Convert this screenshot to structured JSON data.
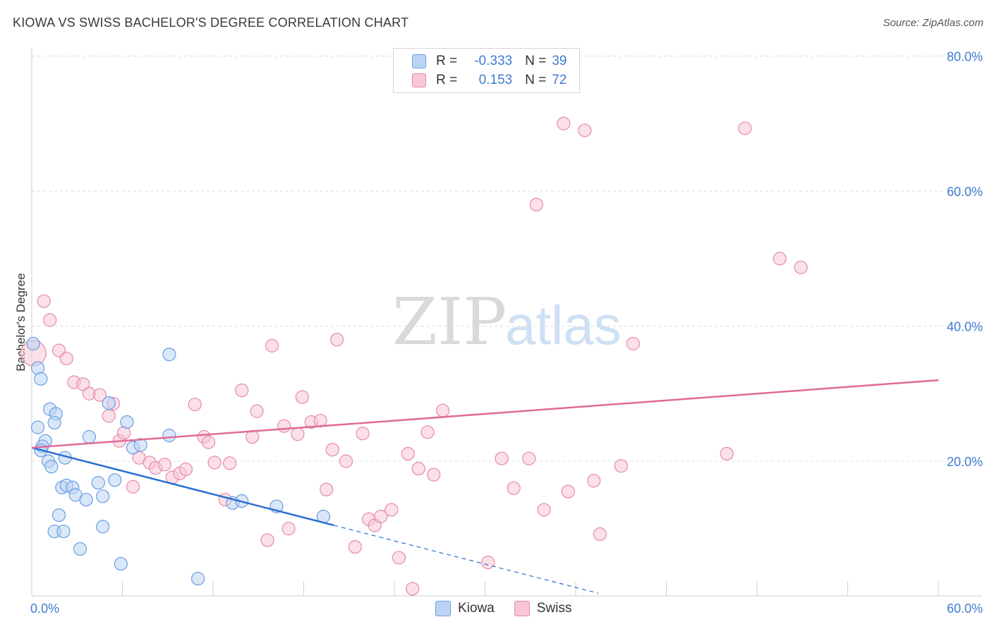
{
  "header": {
    "title": "KIOWA VS SWISS BACHELOR'S DEGREE CORRELATION CHART",
    "source": "Source: ZipAtlas.com"
  },
  "legend": {
    "rows": [
      {
        "r_label": "R =",
        "r_value": "-0.333",
        "n_label": "N =",
        "n_value": "39"
      },
      {
        "r_label": "R =",
        "r_value": "0.153",
        "n_label": "N =",
        "n_value": "72"
      }
    ]
  },
  "watermark": {
    "part1": "ZIP",
    "part2": "atlas"
  },
  "colors": {
    "kiowa_fill": "#bcd4f4",
    "kiowa_stroke": "#6a9ee0",
    "kiowa_line": "#2a6fd1",
    "swiss_fill": "#f8c6d6",
    "swiss_stroke": "#e58aa8",
    "swiss_line": "#e06b96",
    "tick_text": "#3f7bd0",
    "grid": "#dcdcdc"
  },
  "chart_data": {
    "type": "scatter",
    "title": "KIOWA VS SWISS BACHELOR'S DEGREE CORRELATION CHART",
    "xlabel": "",
    "ylabel": "Bachelor's Degree",
    "xlim": [
      0,
      60
    ],
    "ylim": [
      0,
      85
    ],
    "x_tick_labels": [
      "0.0%",
      "60.0%"
    ],
    "y_ticks": [
      20,
      40,
      60,
      80
    ],
    "y_tick_labels": [
      "20.0%",
      "40.0%",
      "60.0%",
      "80.0%"
    ],
    "grid": true,
    "legend_position": "top-center",
    "series": [
      {
        "name": "Kiowa",
        "r": -0.333,
        "n": 39,
        "trend": {
          "x0": 0,
          "y0": 22.0,
          "x1": 20,
          "y1": 10.5,
          "dashed_to_x": 37.5
        },
        "points": [
          [
            0.1,
            37.4
          ],
          [
            0.4,
            33.8
          ],
          [
            0.6,
            32.2
          ],
          [
            0.4,
            25.0
          ],
          [
            1.2,
            27.7
          ],
          [
            1.6,
            27.0
          ],
          [
            1.5,
            25.7
          ],
          [
            0.9,
            23.0
          ],
          [
            0.7,
            22.2
          ],
          [
            0.6,
            21.6
          ],
          [
            2.2,
            20.5
          ],
          [
            1.1,
            20.0
          ],
          [
            1.3,
            19.2
          ],
          [
            2.0,
            16.1
          ],
          [
            2.3,
            16.4
          ],
          [
            2.7,
            16.1
          ],
          [
            2.9,
            15.0
          ],
          [
            3.6,
            14.3
          ],
          [
            1.8,
            12.0
          ],
          [
            1.5,
            9.6
          ],
          [
            2.1,
            9.6
          ],
          [
            3.2,
            7.0
          ],
          [
            3.8,
            23.6
          ],
          [
            4.4,
            16.8
          ],
          [
            4.7,
            14.8
          ],
          [
            4.7,
            10.3
          ],
          [
            5.5,
            17.2
          ],
          [
            5.1,
            28.6
          ],
          [
            6.3,
            25.8
          ],
          [
            6.7,
            22.0
          ],
          [
            7.2,
            22.4
          ],
          [
            9.1,
            23.8
          ],
          [
            9.1,
            35.8
          ],
          [
            5.9,
            4.8
          ],
          [
            11.0,
            2.6
          ],
          [
            13.3,
            13.8
          ],
          [
            13.9,
            14.1
          ],
          [
            16.2,
            13.3
          ],
          [
            19.3,
            11.8
          ]
        ]
      },
      {
        "name": "Swiss",
        "r": 0.153,
        "n": 72,
        "trend": {
          "x0": 0,
          "y0": 22.0,
          "x1": 60,
          "y1": 32.0
        },
        "points": [
          [
            0.1,
            36.0
          ],
          [
            0.8,
            43.7
          ],
          [
            1.2,
            40.9
          ],
          [
            1.8,
            36.4
          ],
          [
            2.3,
            35.2
          ],
          [
            2.8,
            31.7
          ],
          [
            3.4,
            31.4
          ],
          [
            3.8,
            30.0
          ],
          [
            4.5,
            29.8
          ],
          [
            5.1,
            26.7
          ],
          [
            5.4,
            28.5
          ],
          [
            5.8,
            23.0
          ],
          [
            6.1,
            24.2
          ],
          [
            6.7,
            16.2
          ],
          [
            7.1,
            20.5
          ],
          [
            7.8,
            19.8
          ],
          [
            8.2,
            19.0
          ],
          [
            8.8,
            19.5
          ],
          [
            9.3,
            17.6
          ],
          [
            9.8,
            18.2
          ],
          [
            10.2,
            18.8
          ],
          [
            10.8,
            28.4
          ],
          [
            11.4,
            23.6
          ],
          [
            11.7,
            22.8
          ],
          [
            12.1,
            19.8
          ],
          [
            12.8,
            14.3
          ],
          [
            13.1,
            19.7
          ],
          [
            13.9,
            30.5
          ],
          [
            14.6,
            23.6
          ],
          [
            14.9,
            27.4
          ],
          [
            15.6,
            8.3
          ],
          [
            15.9,
            37.1
          ],
          [
            16.7,
            25.2
          ],
          [
            17.0,
            10.0
          ],
          [
            17.6,
            24.0
          ],
          [
            17.9,
            29.5
          ],
          [
            18.5,
            25.8
          ],
          [
            19.1,
            26.0
          ],
          [
            19.5,
            15.8
          ],
          [
            19.9,
            21.7
          ],
          [
            20.2,
            38.0
          ],
          [
            20.8,
            20.0
          ],
          [
            21.4,
            7.3
          ],
          [
            21.9,
            24.1
          ],
          [
            22.3,
            11.4
          ],
          [
            22.7,
            10.5
          ],
          [
            23.1,
            11.8
          ],
          [
            23.8,
            12.8
          ],
          [
            24.3,
            5.7
          ],
          [
            24.9,
            21.1
          ],
          [
            25.2,
            1.1
          ],
          [
            25.6,
            18.9
          ],
          [
            26.2,
            24.3
          ],
          [
            26.6,
            18.0
          ],
          [
            27.2,
            27.5
          ],
          [
            30.2,
            5.0
          ],
          [
            31.1,
            20.4
          ],
          [
            31.9,
            16.0
          ],
          [
            32.9,
            20.4
          ],
          [
            33.4,
            58.0
          ],
          [
            33.9,
            12.8
          ],
          [
            35.2,
            70.0
          ],
          [
            35.5,
            15.5
          ],
          [
            36.6,
            69.0
          ],
          [
            37.2,
            17.1
          ],
          [
            37.6,
            9.2
          ],
          [
            39.0,
            19.3
          ],
          [
            39.8,
            37.4
          ],
          [
            46.0,
            21.1
          ],
          [
            47.2,
            69.3
          ],
          [
            49.5,
            50.0
          ],
          [
            50.9,
            48.7
          ]
        ]
      }
    ]
  },
  "bottom_legend": {
    "items": [
      "Kiowa",
      "Swiss"
    ]
  }
}
